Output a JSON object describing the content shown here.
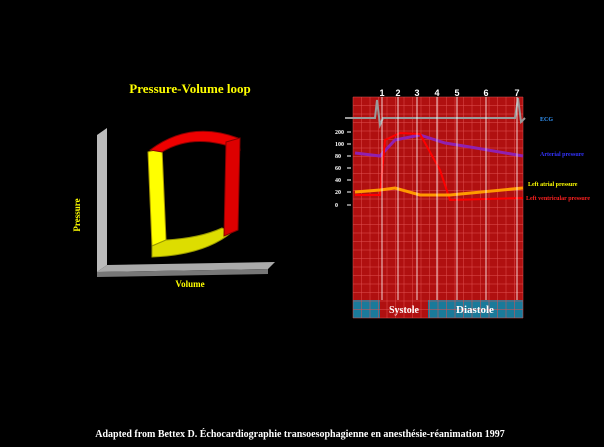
{
  "left_panel": {
    "title": "Pressure-Volume loop",
    "y_label": "Pressure",
    "x_label": "Volume"
  },
  "right_panel": {
    "phases": [
      "1",
      "2",
      "3",
      "4",
      "5",
      "6",
      "7"
    ],
    "y_ticks": [
      "200",
      "100",
      "80",
      "60",
      "40",
      "20",
      "0"
    ],
    "traces": [
      "ECG",
      "Arterial pressure",
      "Left atrial pressure",
      "Left ventricular pressure"
    ],
    "periods": [
      "Systole",
      "Diastole"
    ]
  },
  "citation": "Adapted from Bettex D. Échocardiographie transoesophagienne en anesthésie-réanimation 1997"
}
